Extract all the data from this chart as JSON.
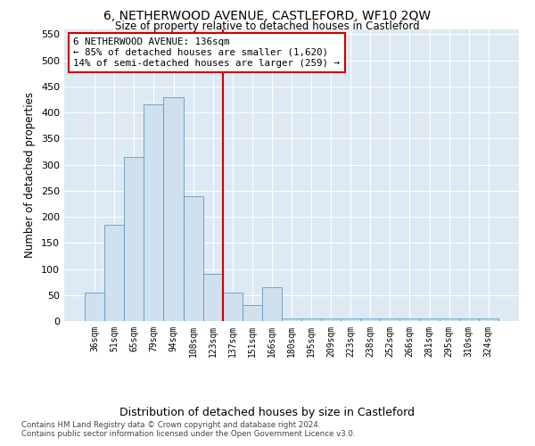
{
  "title": "6, NETHERWOOD AVENUE, CASTLEFORD, WF10 2QW",
  "subtitle": "Size of property relative to detached houses in Castleford",
  "xlabel": "Distribution of detached houses by size in Castleford",
  "ylabel": "Number of detached properties",
  "bin_labels": [
    "36sqm",
    "51sqm",
    "65sqm",
    "79sqm",
    "94sqm",
    "108sqm",
    "123sqm",
    "137sqm",
    "151sqm",
    "166sqm",
    "180sqm",
    "195sqm",
    "209sqm",
    "223sqm",
    "238sqm",
    "252sqm",
    "266sqm",
    "281sqm",
    "295sqm",
    "310sqm",
    "324sqm"
  ],
  "bar_heights": [
    55,
    185,
    315,
    415,
    430,
    240,
    90,
    55,
    30,
    65,
    5,
    5,
    5,
    5,
    5,
    5,
    5,
    5,
    5,
    5,
    5
  ],
  "bar_color": "#cfe0ee",
  "bar_edge_color": "#6699bb",
  "vline_x_index": 7,
  "vline_color": "#cc0000",
  "annotation_title": "6 NETHERWOOD AVENUE: 136sqm",
  "annotation_line1": "← 85% of detached houses are smaller (1,620)",
  "annotation_line2": "14% of semi-detached houses are larger (259) →",
  "annotation_box_edgecolor": "#cc0000",
  "ylim": [
    0,
    560
  ],
  "yticks": [
    0,
    50,
    100,
    150,
    200,
    250,
    300,
    350,
    400,
    450,
    500,
    550
  ],
  "footnote1": "Contains HM Land Registry data © Crown copyright and database right 2024.",
  "footnote2": "Contains public sector information licensed under the Open Government Licence v3.0.",
  "fig_bg_color": "#ffffff",
  "plot_bg_color": "#ddeaf4"
}
